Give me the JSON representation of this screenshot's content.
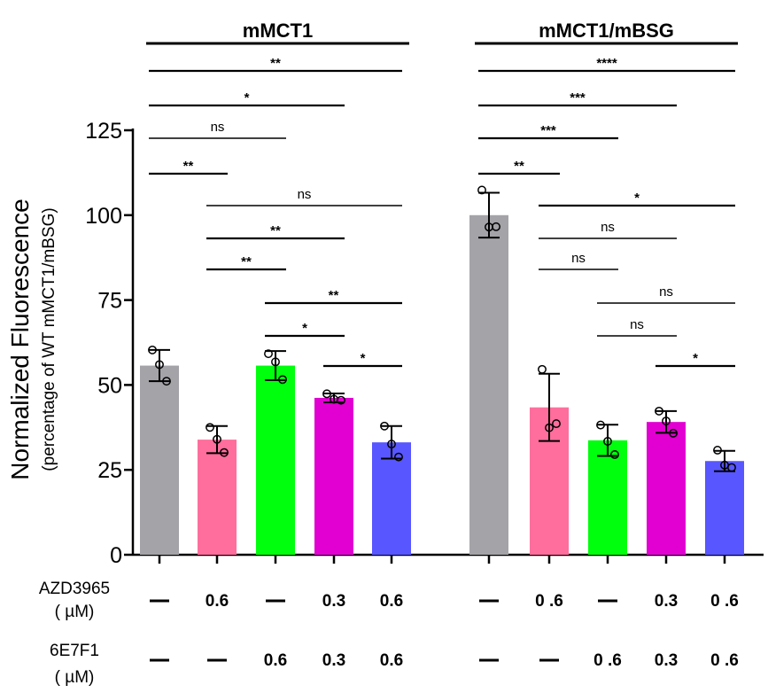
{
  "chart_data": {
    "type": "bar",
    "ylabel": "Normalized Fluorescence",
    "ylabel_sub": "(percentage of WT mMCT1/mBSG)",
    "ylim": [
      0,
      125
    ],
    "yticks": [
      "0",
      "25",
      "50",
      "75",
      "100",
      "125"
    ],
    "groups": [
      {
        "name": "mMCT1",
        "bars": [
          {
            "mean": 55.7,
            "sd": 4.6,
            "points": [
              60.3,
              56.0,
              51.1
            ],
            "color": "#a3a3a8",
            "azd": "—",
            "e7f1": "—"
          },
          {
            "mean": 33.9,
            "sd": 4.0,
            "points": [
              37.5,
              34.0,
              30.1
            ],
            "color": "#ff6e9c",
            "azd": "0.6",
            "e7f1": "—"
          },
          {
            "mean": 55.7,
            "sd": 4.3,
            "points": [
              59.2,
              56.8,
              51.6
            ],
            "color": "#00ff0c",
            "azd": "—",
            "e7f1": "0.6"
          },
          {
            "mean": 46.2,
            "sd": 1.3,
            "points": [
              47.4,
              45.8,
              45.5
            ],
            "color": "#e100d1",
            "azd": "0.3",
            "e7f1": "0.3"
          },
          {
            "mean": 33.1,
            "sd": 4.8,
            "points": [
              37.9,
              32.6,
              28.8
            ],
            "color": "#5856ff",
            "azd": "0.6",
            "e7f1": "0.6"
          }
        ]
      },
      {
        "name": "mMCT1/mBSG",
        "bars": [
          {
            "mean": 100.0,
            "sd": 6.6,
            "points": [
              107.4,
              96.5,
              96.6
            ],
            "color": "#a3a3a8",
            "azd": "—",
            "e7f1": "—"
          },
          {
            "mean": 43.4,
            "sd": 9.9,
            "points": [
              54.6,
              37.4,
              38.6
            ],
            "color": "#ff6e9c",
            "azd": "0 .6",
            "e7f1": "—"
          },
          {
            "mean": 33.7,
            "sd": 4.6,
            "points": [
              38.2,
              33.4,
              29.5
            ],
            "color": "#00ff0c",
            "azd": "—",
            "e7f1": "0 .6"
          },
          {
            "mean": 39.1,
            "sd": 3.2,
            "points": [
              42.3,
              39.4,
              35.8
            ],
            "color": "#e100d1",
            "azd": "0.3",
            "e7f1": "0.3"
          },
          {
            "mean": 27.6,
            "sd": 3.0,
            "points": [
              30.8,
              26.4,
              25.7
            ],
            "color": "#5856ff",
            "azd": "0 .6",
            "e7f1": "0 .6"
          }
        ]
      }
    ],
    "comparisons": [
      {
        "group": 0,
        "from": 0,
        "to": 4,
        "label": "**"
      },
      {
        "group": 0,
        "from": 0,
        "to": 3,
        "label": "*"
      },
      {
        "group": 0,
        "from": 0,
        "to": 2,
        "label": "ns"
      },
      {
        "group": 0,
        "from": 0,
        "to": 1,
        "label": "**"
      },
      {
        "group": 0,
        "from": 1,
        "to": 4,
        "label": "ns"
      },
      {
        "group": 0,
        "from": 1,
        "to": 3,
        "label": "**"
      },
      {
        "group": 0,
        "from": 1,
        "to": 2,
        "label": "**"
      },
      {
        "group": 0,
        "from": 2,
        "to": 4,
        "label": "**"
      },
      {
        "group": 0,
        "from": 2,
        "to": 3,
        "label": "*"
      },
      {
        "group": 0,
        "from": 3,
        "to": 4,
        "label": "*"
      },
      {
        "group": 1,
        "from": 0,
        "to": 4,
        "label": "****"
      },
      {
        "group": 1,
        "from": 0,
        "to": 3,
        "label": "***"
      },
      {
        "group": 1,
        "from": 0,
        "to": 2,
        "label": "***"
      },
      {
        "group": 1,
        "from": 0,
        "to": 1,
        "label": "**"
      },
      {
        "group": 1,
        "from": 1,
        "to": 4,
        "label": "*"
      },
      {
        "group": 1,
        "from": 1,
        "to": 3,
        "label": "ns"
      },
      {
        "group": 1,
        "from": 1,
        "to": 2,
        "label": "ns"
      },
      {
        "group": 1,
        "from": 2,
        "to": 4,
        "label": "ns"
      },
      {
        "group": 1,
        "from": 2,
        "to": 3,
        "label": "ns"
      },
      {
        "group": 1,
        "from": 3,
        "to": 4,
        "label": "*"
      }
    ],
    "treatment_rows": [
      {
        "name": "AZD3965",
        "unit": "( µM)"
      },
      {
        "name": "6E7F1",
        "unit": "( µM)"
      }
    ]
  }
}
